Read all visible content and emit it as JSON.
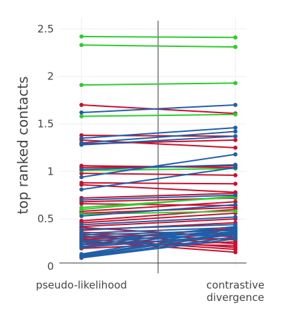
{
  "chart_data": {
    "type": "line",
    "categories": [
      "pseudo-likelihood",
      "contrastive divergence"
    ],
    "ylabel": "top ranked contacts",
    "ylim": [
      0,
      2.55
    ],
    "yticks": [
      0,
      0.5,
      1,
      1.5,
      2,
      2.5
    ],
    "ytick_labels": [
      "0",
      "0.5",
      "1",
      "1.5",
      "2",
      "2.5"
    ],
    "grid": true,
    "legend": "none",
    "colors": {
      "green": "#2ecc2e",
      "red": "#c8102e",
      "blue": "#1f5fa8"
    },
    "series": [
      {
        "color": "green",
        "values": [
          2.42,
          2.41
        ]
      },
      {
        "color": "green",
        "values": [
          2.33,
          2.31
        ]
      },
      {
        "color": "green",
        "values": [
          1.91,
          1.93
        ]
      },
      {
        "color": "red",
        "values": [
          1.7,
          1.61
        ]
      },
      {
        "color": "blue",
        "values": [
          1.62,
          1.7
        ]
      },
      {
        "color": "green",
        "values": [
          1.58,
          1.6
        ]
      },
      {
        "color": "red",
        "values": [
          1.38,
          1.37
        ]
      },
      {
        "color": "blue",
        "values": [
          1.35,
          1.46
        ]
      },
      {
        "color": "red",
        "values": [
          1.33,
          1.25
        ]
      },
      {
        "color": "blue",
        "values": [
          1.3,
          1.42
        ]
      },
      {
        "color": "blue",
        "values": [
          1.28,
          1.37
        ]
      },
      {
        "color": "red",
        "values": [
          1.29,
          1.33
        ]
      },
      {
        "color": "red",
        "values": [
          1.06,
          1.04
        ]
      },
      {
        "color": "red",
        "values": [
          1.04,
          1.06
        ]
      },
      {
        "color": "blue",
        "values": [
          1.02,
          1.07
        ]
      },
      {
        "color": "green",
        "values": [
          1.01,
          1.03
        ]
      },
      {
        "color": "blue",
        "values": [
          0.94,
          1.18
        ]
      },
      {
        "color": "red",
        "values": [
          0.98,
          0.96
        ]
      },
      {
        "color": "red",
        "values": [
          0.88,
          0.87
        ]
      },
      {
        "color": "blue",
        "values": [
          0.81,
          1.04
        ]
      },
      {
        "color": "red",
        "values": [
          0.86,
          0.78
        ]
      },
      {
        "color": "red",
        "values": [
          0.72,
          0.77
        ]
      },
      {
        "color": "blue",
        "values": [
          0.7,
          0.75
        ]
      },
      {
        "color": "red",
        "values": [
          0.68,
          0.72
        ]
      },
      {
        "color": "green",
        "values": [
          0.62,
          0.73
        ]
      },
      {
        "color": "red",
        "values": [
          0.66,
          0.64
        ]
      },
      {
        "color": "green",
        "values": [
          0.6,
          0.74
        ]
      },
      {
        "color": "red",
        "values": [
          0.58,
          0.68
        ]
      },
      {
        "color": "red",
        "values": [
          0.56,
          0.62
        ]
      },
      {
        "color": "green",
        "values": [
          0.55,
          0.58
        ]
      },
      {
        "color": "blue",
        "values": [
          0.53,
          0.65
        ]
      },
      {
        "color": "red",
        "values": [
          0.48,
          0.6
        ]
      },
      {
        "color": "red",
        "values": [
          0.46,
          0.56
        ]
      },
      {
        "color": "blue",
        "values": [
          0.44,
          0.52
        ]
      },
      {
        "color": "red",
        "values": [
          0.42,
          0.5
        ]
      },
      {
        "color": "red",
        "values": [
          0.41,
          0.31
        ]
      },
      {
        "color": "blue",
        "values": [
          0.39,
          0.44
        ]
      },
      {
        "color": "red",
        "values": [
          0.38,
          0.46
        ]
      },
      {
        "color": "red",
        "values": [
          0.36,
          0.28
        ]
      },
      {
        "color": "blue",
        "values": [
          0.35,
          0.41
        ]
      },
      {
        "color": "red",
        "values": [
          0.34,
          0.24
        ]
      },
      {
        "color": "blue",
        "values": [
          0.33,
          0.38
        ]
      },
      {
        "color": "red",
        "values": [
          0.32,
          0.2
        ]
      },
      {
        "color": "red",
        "values": [
          0.31,
          0.35
        ]
      },
      {
        "color": "blue",
        "values": [
          0.3,
          0.36
        ]
      },
      {
        "color": "red",
        "values": [
          0.29,
          0.18
        ]
      },
      {
        "color": "red",
        "values": [
          0.28,
          0.4
        ]
      },
      {
        "color": "blue",
        "values": [
          0.27,
          0.34
        ]
      },
      {
        "color": "red",
        "values": [
          0.27,
          0.15
        ]
      },
      {
        "color": "blue",
        "values": [
          0.25,
          0.42
        ]
      },
      {
        "color": "red",
        "values": [
          0.25,
          0.22
        ]
      },
      {
        "color": "blue",
        "values": [
          0.23,
          0.39
        ]
      },
      {
        "color": "red",
        "values": [
          0.23,
          0.3
        ]
      },
      {
        "color": "blue",
        "values": [
          0.21,
          0.37
        ]
      },
      {
        "color": "blue",
        "values": [
          0.2,
          0.33
        ]
      },
      {
        "color": "red",
        "values": [
          0.19,
          0.26
        ]
      },
      {
        "color": "blue",
        "values": [
          0.13,
          0.4
        ]
      },
      {
        "color": "blue",
        "values": [
          0.12,
          0.36
        ]
      },
      {
        "color": "blue",
        "values": [
          0.11,
          0.34
        ]
      },
      {
        "color": "blue",
        "values": [
          0.1,
          0.31
        ]
      },
      {
        "color": "blue",
        "values": [
          0.09,
          0.29
        ]
      }
    ]
  }
}
